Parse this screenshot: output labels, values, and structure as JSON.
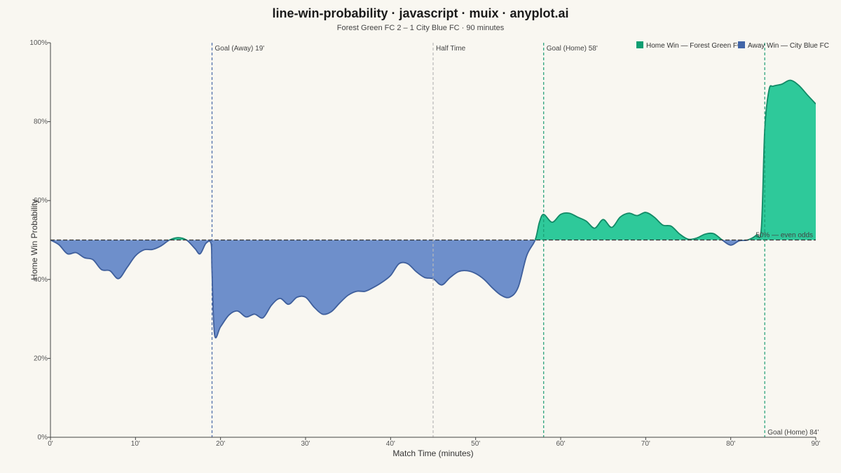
{
  "chart_data": {
    "type": "area",
    "title": "line-win-probability · javascript · muix · anyplot.ai",
    "subtitle": "Forest Green FC 2 – 1 City Blue FC · 90 minutes",
    "xlabel": "Match Time (minutes)",
    "ylabel": "Home Win Probability",
    "xlim": [
      0,
      90
    ],
    "ylim": [
      0,
      100
    ],
    "x_ticks": [
      0,
      10,
      20,
      30,
      40,
      50,
      60,
      70,
      80,
      90
    ],
    "x_tick_labels": [
      "0'",
      "10'",
      "20'",
      "30'",
      "40'",
      "50'",
      "60'",
      "70'",
      "80'",
      "90'"
    ],
    "y_ticks": [
      0,
      20,
      40,
      60,
      80,
      100
    ],
    "y_tick_labels": [
      "0%",
      "20%",
      "40%",
      "60%",
      "80%",
      "100%"
    ],
    "baseline": 50,
    "baseline_label": "50% — even odds",
    "legend_position": "top-right",
    "colors": {
      "home": "#2ec99a",
      "home_line": "#128a66",
      "home_legend": "#0f9e72",
      "away": "#6e8fcb",
      "away_line": "#3f5f9c",
      "away_legend": "#4266a8",
      "away_goal_line": "#4a6aa8",
      "home_goal_line": "#1b9d73",
      "halftime_line": "#b8b8b8",
      "baseline": "#333333",
      "background": "#f9f7f1"
    },
    "series": [
      {
        "name": "Home Win — Forest Green FC",
        "x": [
          0,
          1,
          2,
          3,
          4,
          5,
          6,
          7,
          8,
          9,
          10,
          11,
          12,
          13,
          14,
          15,
          16,
          17,
          17.6,
          18.3,
          18.9,
          19.0,
          19.3,
          20,
          21,
          22,
          23,
          24,
          25,
          26,
          27,
          28,
          29,
          30,
          31,
          32,
          33,
          34,
          35,
          36,
          37,
          38,
          39,
          40,
          41,
          42,
          43,
          44,
          45,
          46,
          47,
          48,
          49,
          50,
          51,
          52,
          53,
          54,
          55,
          56,
          57,
          57.5,
          58,
          59,
          60,
          61,
          62,
          63,
          64,
          65,
          66,
          67,
          68,
          69,
          70,
          71,
          72,
          73,
          74,
          75,
          76,
          77,
          78,
          79,
          80,
          81,
          82,
          83,
          83.6,
          84,
          84.5,
          85,
          86,
          87,
          88,
          89,
          90
        ],
        "values": [
          50,
          48.8,
          46.5,
          46.8,
          45.5,
          45.0,
          42.5,
          42.2,
          40.2,
          43.0,
          46.0,
          47.5,
          47.6,
          48.5,
          50.0,
          50.6,
          50.0,
          47.8,
          46.5,
          49.2,
          49.0,
          42.0,
          26.0,
          28.0,
          31.0,
          32.0,
          30.5,
          31.2,
          30.3,
          33.5,
          35.2,
          33.7,
          35.5,
          35.5,
          33.0,
          31.2,
          31.8,
          34.0,
          36.0,
          37.0,
          37.0,
          38.0,
          39.3,
          41.0,
          44.0,
          44.0,
          42.0,
          40.5,
          40.2,
          38.6,
          40.5,
          42.0,
          42.2,
          41.5,
          40.0,
          37.8,
          36.0,
          35.5,
          38.0,
          46.0,
          50.0,
          54.5,
          56.5,
          54.5,
          56.5,
          56.8,
          55.8,
          54.8,
          53.0,
          55.2,
          53.2,
          55.8,
          56.8,
          56.2,
          57.0,
          55.8,
          53.8,
          53.5,
          51.5,
          50.2,
          50.5,
          51.5,
          51.6,
          50.0,
          48.7,
          49.8,
          50.0,
          51.2,
          53.0,
          78.0,
          88.0,
          89.0,
          89.5,
          90.5,
          89.2,
          86.8,
          84.5
        ]
      },
      {
        "name": "Away Win — City Blue FC"
      }
    ],
    "events": [
      {
        "minute": 19,
        "label": "Goal (Away) 19'",
        "kind": "away_goal"
      },
      {
        "minute": 45,
        "label": "Half Time",
        "kind": "halftime"
      },
      {
        "minute": 58,
        "label": "Goal (Home) 58'",
        "kind": "home_goal"
      },
      {
        "minute": 84,
        "label": "Goal (Home) 84'",
        "kind": "home_goal"
      }
    ]
  }
}
